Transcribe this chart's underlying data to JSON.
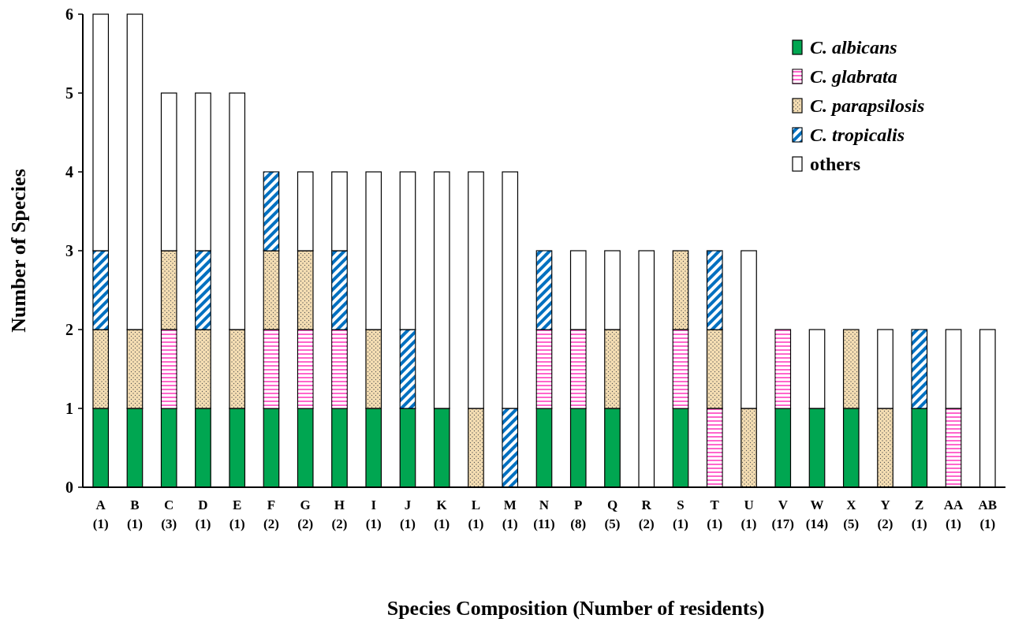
{
  "chart_data": {
    "type": "bar",
    "stacked": true,
    "xlabel": "Species Composition (Number of residents)",
    "ylabel": "Number of Species",
    "categories": [
      "A\n(1)",
      "B\n(1)",
      "C\n(3)",
      "D\n(1)",
      "E\n(1)",
      "F\n(2)",
      "G\n(2)",
      "H\n(2)",
      "I\n(1)",
      "J\n(1)",
      "K\n(1)",
      "L\n(1)",
      "M\n(1)",
      "N\n(11)",
      "P\n(8)",
      "Q\n(5)",
      "R\n(2)",
      "S\n(1)",
      "T\n(1)",
      "U\n(1)",
      "V\n(17)",
      "W\n(14)",
      "X\n(5)",
      "Y\n(2)",
      "Z\n(1)",
      "AA\n(1)",
      "AB\n(1)"
    ],
    "series": [
      {
        "name": "C. albicans",
        "color": "#00a651",
        "values": [
          1,
          1,
          1,
          1,
          1,
          1,
          1,
          1,
          1,
          1,
          1,
          0,
          0,
          1,
          1,
          1,
          0,
          1,
          0,
          0,
          1,
          1,
          1,
          0,
          1,
          0,
          0
        ]
      },
      {
        "name": "C. glabrata",
        "color": "#ff66cc",
        "values": [
          0,
          0,
          1,
          0,
          0,
          1,
          1,
          1,
          0,
          0,
          0,
          0,
          0,
          1,
          1,
          0,
          0,
          1,
          1,
          0,
          1,
          0,
          0,
          0,
          0,
          1,
          0
        ]
      },
      {
        "name": "C. parapsilosis",
        "color": "#f5deb3",
        "values": [
          1,
          1,
          1,
          1,
          1,
          1,
          1,
          0,
          1,
          0,
          0,
          1,
          0,
          0,
          0,
          1,
          0,
          1,
          1,
          1,
          0,
          0,
          1,
          1,
          0,
          0,
          0
        ]
      },
      {
        "name": "C. tropicalis",
        "color": "#0070c0",
        "values": [
          1,
          0,
          0,
          1,
          0,
          1,
          0,
          1,
          0,
          1,
          0,
          0,
          1,
          1,
          0,
          0,
          0,
          0,
          1,
          0,
          0,
          0,
          0,
          0,
          1,
          0,
          0
        ]
      },
      {
        "name": "others",
        "color": "#ffffff",
        "values": [
          3,
          4,
          2,
          2,
          3,
          0,
          1,
          1,
          2,
          2,
          3,
          3,
          3,
          0,
          1,
          1,
          3,
          0,
          0,
          2,
          0,
          1,
          0,
          1,
          0,
          1,
          2
        ]
      }
    ],
    "ylim": [
      0,
      6
    ],
    "yticks": [
      0,
      1,
      2,
      3,
      4,
      5,
      6
    ],
    "legend": "top right"
  }
}
